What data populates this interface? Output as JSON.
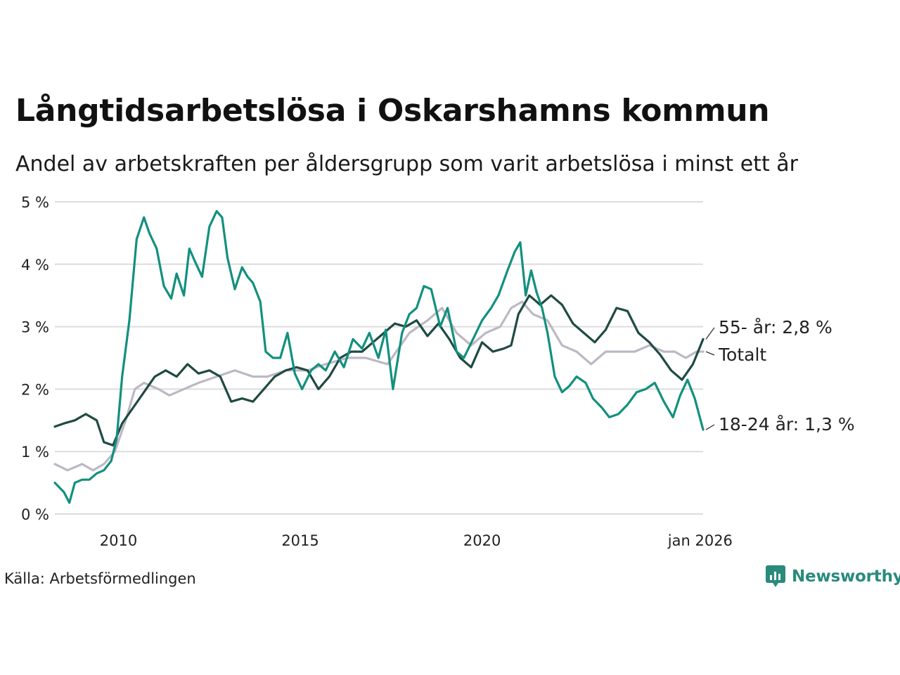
{
  "header": {
    "title": "Långtidsarbetslösa i Oskarshamns kommun",
    "subtitle": "Andel av arbetskraften per åldersgrupp som varit arbetslösa i minst ett år"
  },
  "footer": {
    "source": "Källa: Arbetsförmedlingen",
    "brand": "Newsworthy"
  },
  "colors": {
    "youth": "#12907e",
    "senior": "#1f4a42",
    "total": "#bdb8c4",
    "grid": "#dcdcdc",
    "brand": "#2a8a7c"
  },
  "chart_data": {
    "type": "line",
    "title": "Långtidsarbetslösa i Oskarshamns kommun",
    "xlabel": "",
    "ylabel": "",
    "xlim": [
      2008.25,
      2026.08
    ],
    "ylim": [
      0,
      5
    ],
    "y_ticks": [
      {
        "value": 0,
        "label": "0 %"
      },
      {
        "value": 1,
        "label": "1 %"
      },
      {
        "value": 2,
        "label": "2 %"
      },
      {
        "value": 3,
        "label": "3 %"
      },
      {
        "value": 4,
        "label": "4 %"
      },
      {
        "value": 5,
        "label": "5 %"
      }
    ],
    "x_ticks": [
      {
        "value": 2010,
        "label": "2010"
      },
      {
        "value": 2015,
        "label": "2015"
      },
      {
        "value": 2020,
        "label": "2020"
      },
      {
        "value": 2026.0,
        "label": "jan 2026"
      }
    ],
    "grid": true,
    "series": [
      {
        "name": "Totalt",
        "key": "total",
        "end_label": "Totalt",
        "x": [
          2008.25,
          2008.6,
          2009.0,
          2009.3,
          2009.6,
          2009.9,
          2010.2,
          2010.45,
          2010.7,
          2011.1,
          2011.4,
          2011.8,
          2012.2,
          2012.7,
          2013.2,
          2013.7,
          2014.1,
          2014.6,
          2015.2,
          2015.7,
          2016.3,
          2016.8,
          2017.4,
          2018.0,
          2018.5,
          2018.9,
          2019.3,
          2019.7,
          2020.1,
          2020.5,
          2020.8,
          2021.1,
          2021.4,
          2021.8,
          2022.2,
          2022.6,
          2023.0,
          2023.4,
          2023.8,
          2024.2,
          2024.6,
          2025.0,
          2025.3,
          2025.6,
          2025.9,
          2026.08
        ],
        "y": [
          0.8,
          0.7,
          0.8,
          0.7,
          0.8,
          1.0,
          1.5,
          2.0,
          2.1,
          2.0,
          1.9,
          2.0,
          2.1,
          2.2,
          2.3,
          2.2,
          2.2,
          2.3,
          2.3,
          2.4,
          2.5,
          2.5,
          2.4,
          2.9,
          3.1,
          3.3,
          2.9,
          2.7,
          2.9,
          3.0,
          3.3,
          3.4,
          3.2,
          3.1,
          2.7,
          2.6,
          2.4,
          2.6,
          2.6,
          2.6,
          2.7,
          2.6,
          2.6,
          2.5,
          2.6,
          2.6
        ]
      },
      {
        "name": "55- år",
        "key": "senior",
        "end_label": "55- år: 2,8 %",
        "x": [
          2008.25,
          2008.5,
          2008.8,
          2009.1,
          2009.4,
          2009.6,
          2009.85,
          2010.1,
          2010.4,
          2010.7,
          2011.0,
          2011.3,
          2011.6,
          2011.9,
          2012.2,
          2012.5,
          2012.8,
          2013.1,
          2013.4,
          2013.7,
          2014.0,
          2014.3,
          2014.6,
          2014.9,
          2015.2,
          2015.5,
          2015.8,
          2016.1,
          2016.4,
          2016.7,
          2017.0,
          2017.3,
          2017.6,
          2017.9,
          2018.2,
          2018.5,
          2018.8,
          2019.1,
          2019.4,
          2019.7,
          2020.0,
          2020.3,
          2020.6,
          2020.8,
          2021.0,
          2021.3,
          2021.6,
          2021.9,
          2022.2,
          2022.5,
          2022.8,
          2023.1,
          2023.4,
          2023.7,
          2024.0,
          2024.3,
          2024.6,
          2024.9,
          2025.2,
          2025.5,
          2025.8,
          2026.08
        ],
        "y": [
          1.4,
          1.45,
          1.5,
          1.6,
          1.5,
          1.15,
          1.1,
          1.45,
          1.7,
          1.95,
          2.2,
          2.3,
          2.2,
          2.4,
          2.25,
          2.3,
          2.2,
          1.8,
          1.85,
          1.8,
          2.0,
          2.2,
          2.3,
          2.35,
          2.3,
          2.0,
          2.2,
          2.5,
          2.6,
          2.6,
          2.75,
          2.9,
          3.05,
          3.0,
          3.1,
          2.85,
          3.05,
          2.8,
          2.5,
          2.35,
          2.75,
          2.6,
          2.65,
          2.7,
          3.2,
          3.5,
          3.35,
          3.5,
          3.35,
          3.05,
          2.9,
          2.75,
          2.95,
          3.3,
          3.25,
          2.9,
          2.75,
          2.55,
          2.3,
          2.15,
          2.4,
          2.8
        ]
      },
      {
        "name": "18-24 år",
        "key": "youth",
        "end_label": "18-24 år: 1,3 %",
        "x": [
          2008.25,
          2008.5,
          2008.65,
          2008.8,
          2009.0,
          2009.2,
          2009.4,
          2009.6,
          2009.8,
          2009.95,
          2010.1,
          2010.3,
          2010.5,
          2010.7,
          2010.85,
          2011.05,
          2011.25,
          2011.45,
          2011.6,
          2011.8,
          2011.95,
          2012.1,
          2012.3,
          2012.5,
          2012.7,
          2012.85,
          2013.0,
          2013.2,
          2013.4,
          2013.55,
          2013.7,
          2013.9,
          2014.05,
          2014.25,
          2014.45,
          2014.65,
          2014.85,
          2015.05,
          2015.3,
          2015.5,
          2015.7,
          2015.95,
          2016.2,
          2016.45,
          2016.7,
          2016.9,
          2017.15,
          2017.35,
          2017.55,
          2017.8,
          2018.0,
          2018.2,
          2018.4,
          2018.6,
          2018.85,
          2019.05,
          2019.3,
          2019.5,
          2019.75,
          2020.0,
          2020.25,
          2020.45,
          2020.7,
          2020.9,
          2021.05,
          2021.2,
          2021.35,
          2021.5,
          2021.65,
          2021.8,
          2022.0,
          2022.2,
          2022.4,
          2022.6,
          2022.85,
          2023.05,
          2023.3,
          2023.5,
          2023.75,
          2024.0,
          2024.25,
          2024.5,
          2024.75,
          2025.0,
          2025.25,
          2025.45,
          2025.65,
          2025.85,
          2026.08
        ],
        "y": [
          0.5,
          0.35,
          0.18,
          0.5,
          0.55,
          0.55,
          0.65,
          0.7,
          0.85,
          1.2,
          2.2,
          3.1,
          4.4,
          4.75,
          4.5,
          4.25,
          3.65,
          3.45,
          3.85,
          3.5,
          4.25,
          4.05,
          3.8,
          4.6,
          4.85,
          4.75,
          4.1,
          3.6,
          3.95,
          3.8,
          3.7,
          3.4,
          2.6,
          2.5,
          2.5,
          2.9,
          2.25,
          2.0,
          2.3,
          2.4,
          2.3,
          2.6,
          2.35,
          2.8,
          2.65,
          2.9,
          2.5,
          2.95,
          2.0,
          2.9,
          3.2,
          3.3,
          3.65,
          3.6,
          3.0,
          3.3,
          2.6,
          2.5,
          2.8,
          3.1,
          3.3,
          3.5,
          3.9,
          4.2,
          4.35,
          3.5,
          3.9,
          3.55,
          3.3,
          2.9,
          2.2,
          1.95,
          2.05,
          2.2,
          2.1,
          1.85,
          1.7,
          1.55,
          1.6,
          1.75,
          1.95,
          2.0,
          2.1,
          1.8,
          1.55,
          1.9,
          2.15,
          1.85,
          1.35
        ]
      }
    ]
  }
}
